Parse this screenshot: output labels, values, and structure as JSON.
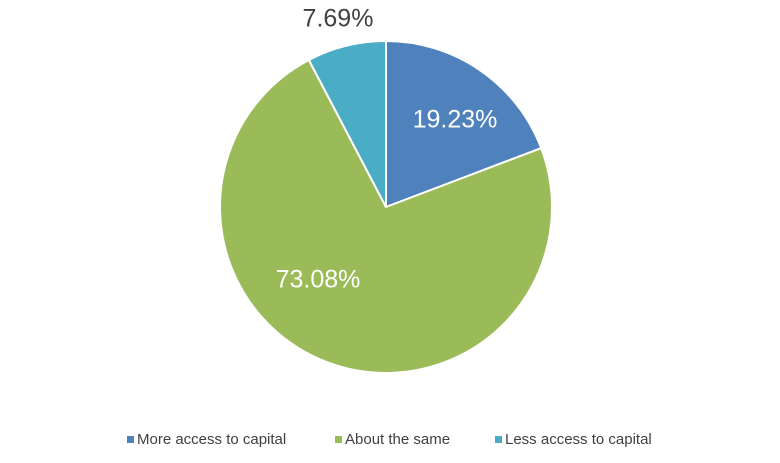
{
  "chart_data": {
    "type": "pie",
    "categories": [
      "More access to capital",
      "About the same",
      "Less access to capital"
    ],
    "values": [
      19.23,
      73.08,
      7.69
    ],
    "value_labels": [
      "19.23%",
      "73.08%",
      "7.69%"
    ],
    "colors": [
      "#4f81bd",
      "#9bbb59",
      "#4bacc6"
    ]
  }
}
